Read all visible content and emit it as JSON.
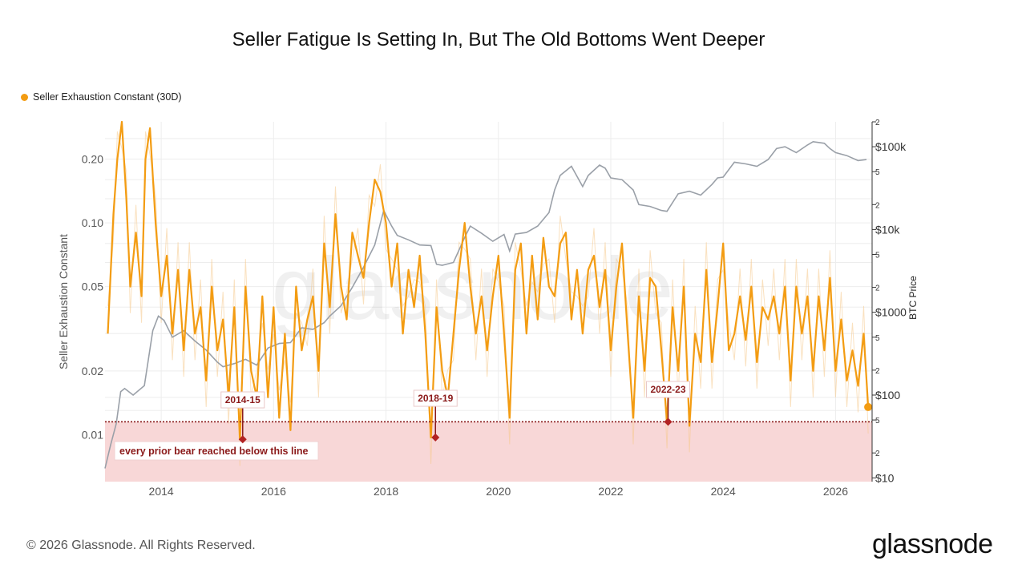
{
  "chart_data": {
    "type": "line",
    "title": "Seller Fatigue Is Setting In, But The Old Bottoms Went Deeper",
    "ylabel": "Seller Exhaustion Constant",
    "y2label": "BTC Price",
    "y_scale": "log",
    "ylim": [
      0.006,
      0.3
    ],
    "y_ticks": [
      "0.01",
      "0.02",
      "0.05",
      "0.10",
      "0.20"
    ],
    "y2_scale": "log",
    "y2lim": [
      9,
      200000
    ],
    "y2_ticks": [
      "2",
      "$10",
      "5",
      "2",
      "$100",
      "5",
      "2",
      "$1000",
      "5",
      "2",
      "$10k",
      "5",
      "2",
      "$100k",
      "5",
      "2"
    ],
    "xlim": [
      2013.0,
      2026.65
    ],
    "x_ticks": [
      "2014",
      "2016",
      "2018",
      "2020",
      "2022",
      "2024",
      "2026"
    ],
    "grid": true,
    "legend_position": "top-left",
    "watermark": "glassnode",
    "threshold": {
      "value": 0.0115,
      "label": "every prior bear reached below this line",
      "color": "#f8d7d7",
      "line_color": "#8b1a1a"
    },
    "annotations": [
      {
        "label": "2014-15",
        "x": 2015.45,
        "y": 0.0095
      },
      {
        "label": "2018-19",
        "x": 2018.88,
        "y": 0.0097
      },
      {
        "label": "2022-23",
        "x": 2023.02,
        "y": 0.0115
      }
    ],
    "series": [
      {
        "name": "Seller Exhaustion Constant (30D)",
        "color": "#f39c12",
        "x": [
          2013.05,
          2013.15,
          2013.22,
          2013.3,
          2013.38,
          2013.45,
          2013.55,
          2013.65,
          2013.72,
          2013.8,
          2013.9,
          2014.0,
          2014.1,
          2014.2,
          2014.3,
          2014.4,
          2014.5,
          2014.6,
          2014.7,
          2014.8,
          2014.9,
          2015.0,
          2015.1,
          2015.2,
          2015.3,
          2015.4,
          2015.5,
          2015.6,
          2015.7,
          2015.8,
          2015.9,
          2016.0,
          2016.1,
          2016.2,
          2016.3,
          2016.4,
          2016.5,
          2016.6,
          2016.7,
          2016.8,
          2016.9,
          2017.0,
          2017.1,
          2017.2,
          2017.3,
          2017.4,
          2017.5,
          2017.6,
          2017.7,
          2017.8,
          2017.9,
          2018.0,
          2018.1,
          2018.2,
          2018.3,
          2018.4,
          2018.5,
          2018.6,
          2018.7,
          2018.8,
          2018.9,
          2019.0,
          2019.1,
          2019.2,
          2019.3,
          2019.4,
          2019.5,
          2019.6,
          2019.7,
          2019.8,
          2019.9,
          2020.0,
          2020.1,
          2020.2,
          2020.3,
          2020.4,
          2020.5,
          2020.6,
          2020.7,
          2020.8,
          2020.9,
          2021.0,
          2021.1,
          2021.2,
          2021.3,
          2021.4,
          2021.5,
          2021.6,
          2021.7,
          2021.8,
          2021.9,
          2022.0,
          2022.1,
          2022.2,
          2022.3,
          2022.4,
          2022.5,
          2022.6,
          2022.7,
          2022.8,
          2022.9,
          2023.0,
          2023.1,
          2023.2,
          2023.3,
          2023.4,
          2023.5,
          2023.6,
          2023.7,
          2023.8,
          2023.9,
          2024.0,
          2024.1,
          2024.2,
          2024.3,
          2024.4,
          2024.5,
          2024.6,
          2024.7,
          2024.8,
          2024.9,
          2025.0,
          2025.1,
          2025.2,
          2025.3,
          2025.4,
          2025.5,
          2025.6,
          2025.7,
          2025.8,
          2025.9,
          2026.0,
          2026.1,
          2026.2,
          2026.3,
          2026.4,
          2026.5,
          2026.58
        ],
        "y": [
          0.03,
          0.11,
          0.2,
          0.3,
          0.13,
          0.05,
          0.09,
          0.045,
          0.2,
          0.28,
          0.1,
          0.045,
          0.07,
          0.03,
          0.06,
          0.025,
          0.06,
          0.03,
          0.04,
          0.018,
          0.05,
          0.025,
          0.035,
          0.015,
          0.04,
          0.0095,
          0.05,
          0.02,
          0.015,
          0.045,
          0.015,
          0.04,
          0.012,
          0.03,
          0.0105,
          0.05,
          0.025,
          0.035,
          0.045,
          0.02,
          0.08,
          0.04,
          0.11,
          0.05,
          0.035,
          0.09,
          0.07,
          0.055,
          0.1,
          0.16,
          0.14,
          0.1,
          0.05,
          0.08,
          0.03,
          0.06,
          0.04,
          0.07,
          0.03,
          0.0097,
          0.04,
          0.02,
          0.015,
          0.03,
          0.06,
          0.1,
          0.05,
          0.03,
          0.045,
          0.025,
          0.045,
          0.07,
          0.03,
          0.012,
          0.06,
          0.08,
          0.03,
          0.07,
          0.035,
          0.085,
          0.05,
          0.045,
          0.08,
          0.09,
          0.035,
          0.06,
          0.03,
          0.06,
          0.07,
          0.04,
          0.06,
          0.025,
          0.05,
          0.08,
          0.03,
          0.012,
          0.045,
          0.02,
          0.055,
          0.05,
          0.025,
          0.0115,
          0.04,
          0.02,
          0.05,
          0.011,
          0.03,
          0.022,
          0.06,
          0.022,
          0.04,
          0.08,
          0.025,
          0.03,
          0.045,
          0.028,
          0.05,
          0.022,
          0.04,
          0.035,
          0.045,
          0.03,
          0.05,
          0.018,
          0.05,
          0.03,
          0.045,
          0.02,
          0.045,
          0.025,
          0.055,
          0.02,
          0.035,
          0.018,
          0.025,
          0.017,
          0.03,
          0.0135
        ]
      },
      {
        "name": "BTC Price",
        "color": "#9aa0a8",
        "x": [
          2013.0,
          2013.1,
          2013.2,
          2013.28,
          2013.35,
          2013.5,
          2013.7,
          2013.85,
          2013.95,
          2014.05,
          2014.2,
          2014.4,
          2014.6,
          2014.8,
          2015.0,
          2015.1,
          2015.3,
          2015.5,
          2015.7,
          2015.9,
          2016.1,
          2016.3,
          2016.5,
          2016.7,
          2016.9,
          2017.0,
          2017.2,
          2017.4,
          2017.6,
          2017.8,
          2017.96,
          2018.1,
          2018.2,
          2018.4,
          2018.6,
          2018.8,
          2018.9,
          2019.0,
          2019.2,
          2019.4,
          2019.5,
          2019.7,
          2019.9,
          2020.1,
          2020.2,
          2020.3,
          2020.5,
          2020.7,
          2020.9,
          2021.0,
          2021.1,
          2021.3,
          2021.5,
          2021.6,
          2021.8,
          2021.9,
          2022.0,
          2022.2,
          2022.4,
          2022.5,
          2022.7,
          2022.9,
          2023.0,
          2023.2,
          2023.4,
          2023.6,
          2023.8,
          2023.9,
          2024.0,
          2024.2,
          2024.4,
          2024.6,
          2024.8,
          2024.95,
          2025.1,
          2025.3,
          2025.5,
          2025.6,
          2025.8,
          2025.9,
          2026.0,
          2026.2,
          2026.4,
          2026.55
        ],
        "y": [
          13,
          25,
          45,
          110,
          120,
          100,
          130,
          600,
          900,
          800,
          500,
          600,
          450,
          350,
          250,
          220,
          240,
          270,
          230,
          370,
          420,
          430,
          650,
          620,
          750,
          900,
          1200,
          2000,
          3500,
          6500,
          17000,
          11000,
          8500,
          7500,
          6500,
          6400,
          3800,
          3700,
          4000,
          8000,
          11000,
          9000,
          7200,
          8700,
          5500,
          8800,
          9200,
          11000,
          16000,
          30000,
          45000,
          58000,
          33000,
          45000,
          60000,
          55000,
          42000,
          40000,
          30000,
          20000,
          19000,
          17000,
          16600,
          27000,
          29000,
          26000,
          35000,
          42000,
          43000,
          65000,
          62000,
          58000,
          70000,
          95000,
          100000,
          85000,
          105000,
          115000,
          110000,
          95000,
          85000,
          78000,
          68000,
          70000
        ]
      }
    ]
  },
  "footer": "© 2026 Glassnode. All Rights Reserved.",
  "brand": "glassnode"
}
